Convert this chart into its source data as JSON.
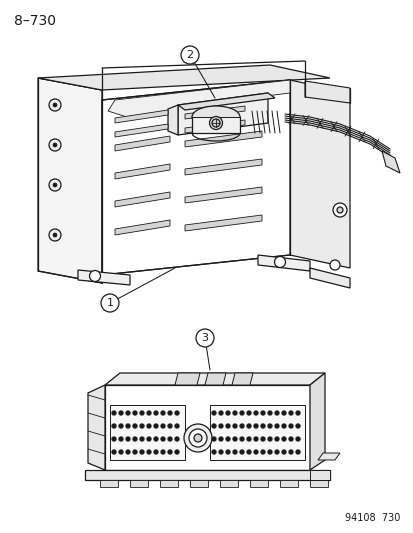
{
  "title_text": "8–730",
  "footer_text": "94108  730",
  "bg_color": "#ffffff",
  "line_color": "#1a1a1a",
  "title_fontsize": 10,
  "footer_fontsize": 7,
  "callout_fontsize": 8,
  "lw": 0.9
}
